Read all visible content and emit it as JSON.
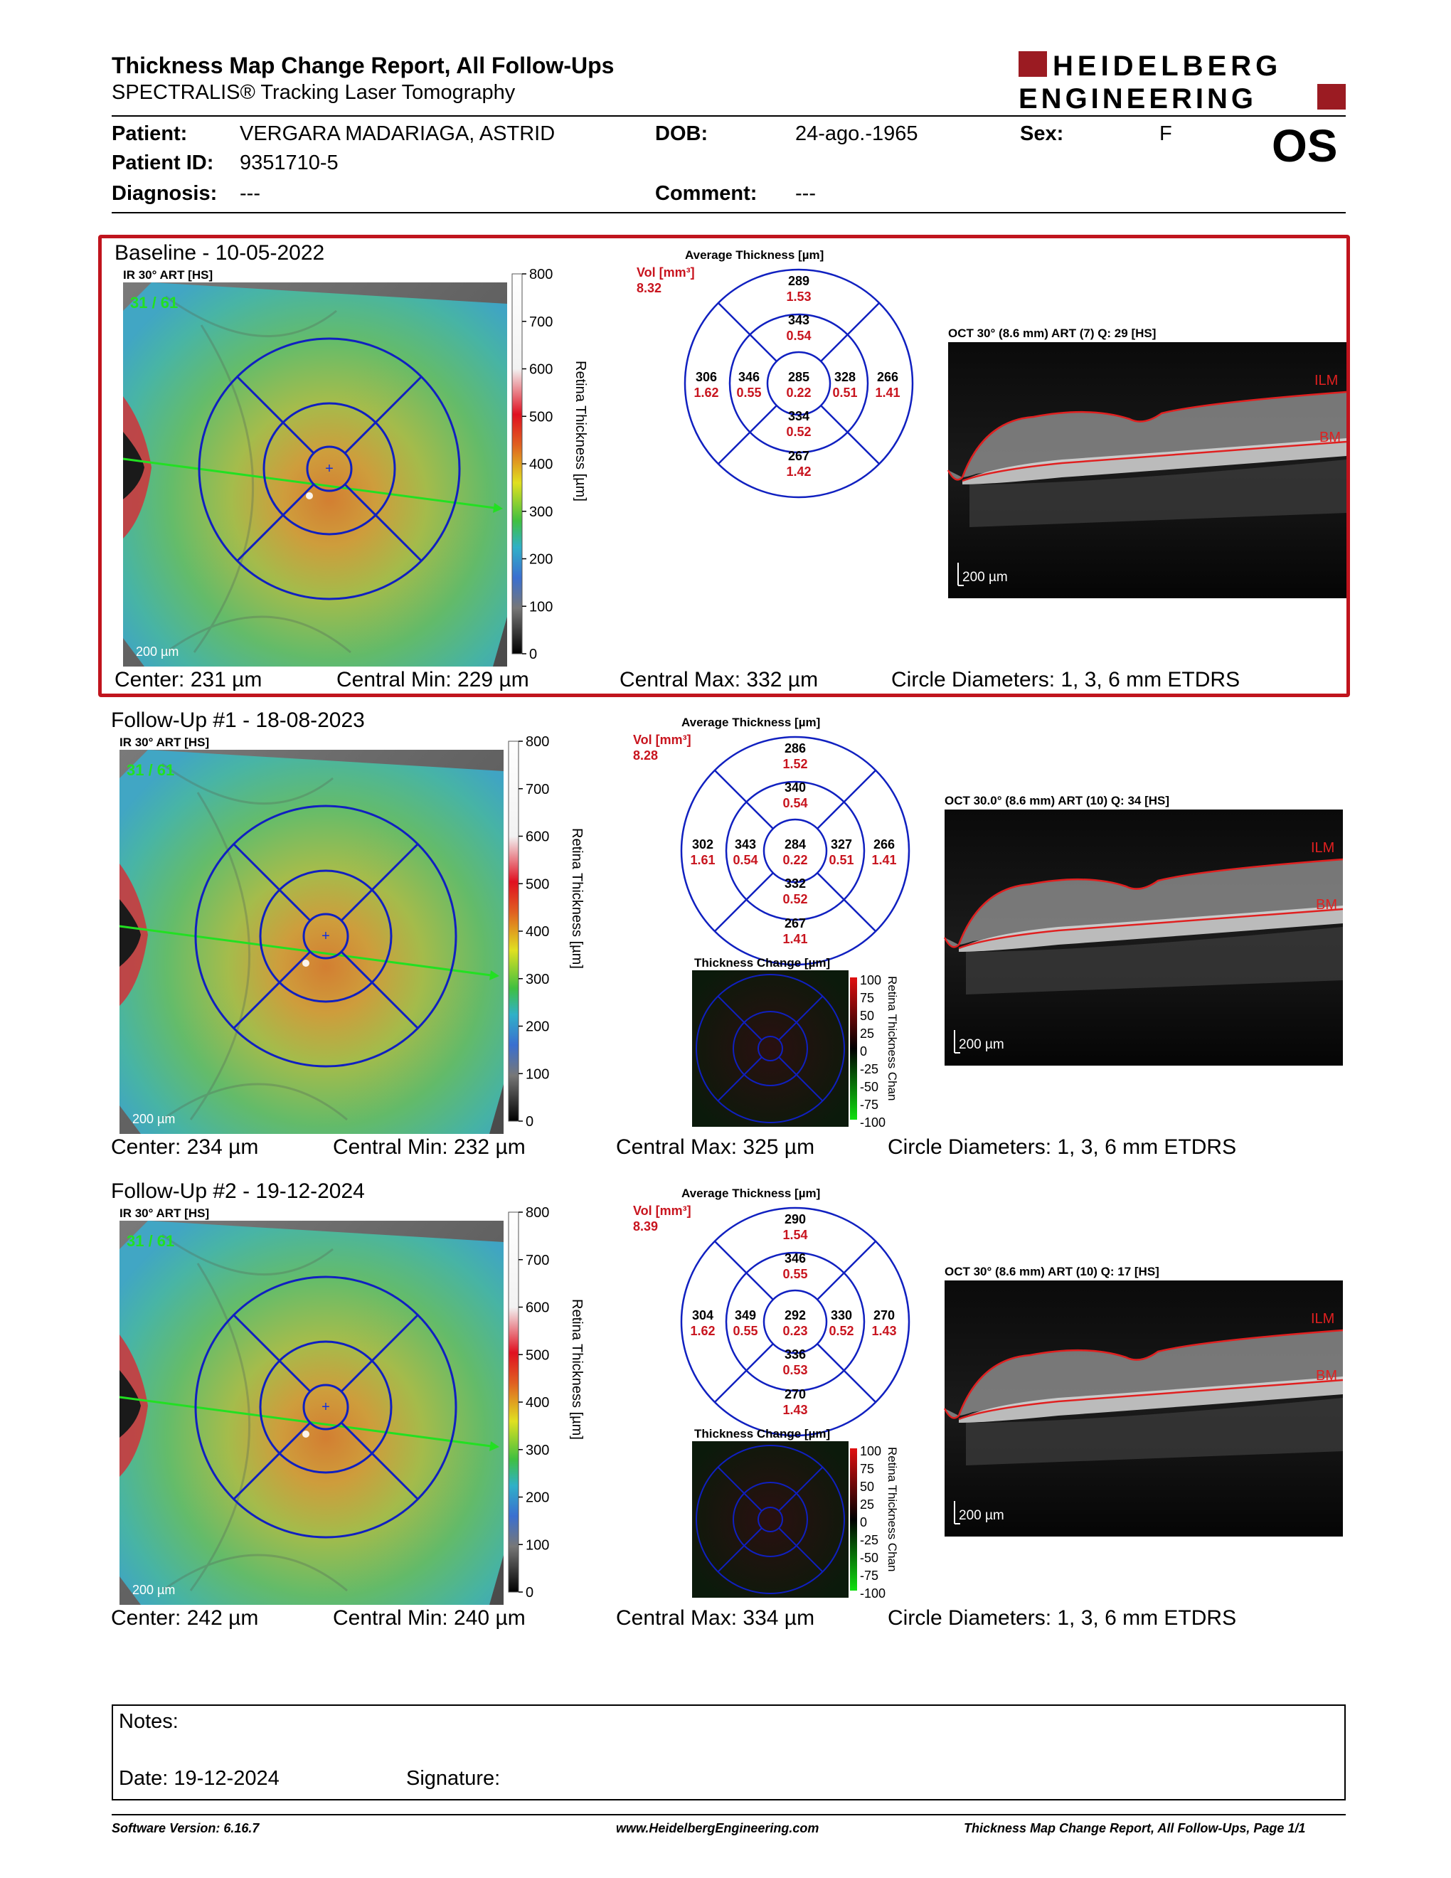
{
  "header": {
    "title": "Thickness Map Change Report, All Follow-Ups",
    "subtitle": "SPECTRALIS® Tracking Laser Tomography",
    "logo_line1": "HEIDELBERG",
    "logo_line2": "ENGINEERING",
    "brand_color": "#9b1b22",
    "eye": "OS"
  },
  "patient": {
    "name_label": "Patient:",
    "name": "VERGARA MADARIAGA, ASTRID",
    "id_label": "Patient ID:",
    "id": "9351710-5",
    "diagnosis_label": "Diagnosis:",
    "diagnosis": "---",
    "dob_label": "DOB:",
    "dob": "24-ago.-1965",
    "comment_label": "Comment:",
    "comment": "---",
    "sex_label": "Sex:",
    "sex": "F"
  },
  "colorbar": {
    "ticks": [
      "800",
      "700",
      "600",
      "500",
      "400",
      "300",
      "200",
      "100",
      "0"
    ],
    "label": "Retina Thickness [µm]"
  },
  "change_colorbar": {
    "ticks": [
      "100",
      "75",
      "50",
      "25",
      "0",
      "-25",
      "-50",
      "-75",
      "-100"
    ],
    "label": "Retina Thickness Chan"
  },
  "sections": [
    {
      "title": "Baseline - 10-05-2022",
      "ir_label": "IR 30° ART [HS]",
      "frames": "31 / 61",
      "scale": "200 µm",
      "avg_title": "Average Thickness [µm]",
      "vol_label": "Vol [mm³]",
      "vol": "8.32",
      "grid": {
        "center": [
          "285",
          "0.22"
        ],
        "inner_sup": [
          "343",
          "0.54"
        ],
        "inner_inf": [
          "334",
          "0.52"
        ],
        "inner_nas": [
          "346",
          "0.55"
        ],
        "inner_temp": [
          "328",
          "0.51"
        ],
        "outer_sup": [
          "289",
          "1.53"
        ],
        "outer_inf": [
          "267",
          "1.42"
        ],
        "outer_nas": [
          "306",
          "1.62"
        ],
        "outer_temp": [
          "266",
          "1.41"
        ]
      },
      "change_title": "",
      "oct_label": "OCT 30° (8.6 mm) ART (7) Q: 29 [HS]",
      "ilm": "ILM",
      "bm": "BM",
      "oct_scale": "200 µm",
      "center": "Center: 231 µm",
      "cmin": "Central Min: 229 µm",
      "cmax": "Central Max: 332 µm",
      "diam": "Circle Diameters:  1, 3, 6 mm ETDRS"
    },
    {
      "title": "Follow-Up #1 - 18-08-2023",
      "ir_label": "IR 30° ART [HS]",
      "frames": "31 / 61",
      "scale": "200 µm",
      "avg_title": "Average Thickness [µm]",
      "vol_label": "Vol [mm³]",
      "vol": "8.28",
      "grid": {
        "center": [
          "284",
          "0.22"
        ],
        "inner_sup": [
          "340",
          "0.54"
        ],
        "inner_inf": [
          "332",
          "0.52"
        ],
        "inner_nas": [
          "343",
          "0.54"
        ],
        "inner_temp": [
          "327",
          "0.51"
        ],
        "outer_sup": [
          "286",
          "1.52"
        ],
        "outer_inf": [
          "267",
          "1.41"
        ],
        "outer_nas": [
          "302",
          "1.61"
        ],
        "outer_temp": [
          "266",
          "1.41"
        ]
      },
      "change_title": "Thickness Change [µm]",
      "oct_label": "OCT 30.0° (8.6 mm) ART (10) Q: 34 [HS]",
      "ilm": "ILM",
      "bm": "BM",
      "oct_scale": "200 µm",
      "center": "Center: 234 µm",
      "cmin": "Central Min: 232 µm",
      "cmax": "Central Max: 325 µm",
      "diam": "Circle Diameters:  1, 3, 6 mm ETDRS"
    },
    {
      "title": "Follow-Up #2 - 19-12-2024",
      "ir_label": "IR 30° ART [HS]",
      "frames": "31 / 61",
      "scale": "200 µm",
      "avg_title": "Average Thickness [µm]",
      "vol_label": "Vol [mm³]",
      "vol": "8.39",
      "grid": {
        "center": [
          "292",
          "0.23"
        ],
        "inner_sup": [
          "346",
          "0.55"
        ],
        "inner_inf": [
          "336",
          "0.53"
        ],
        "inner_nas": [
          "349",
          "0.55"
        ],
        "inner_temp": [
          "330",
          "0.52"
        ],
        "outer_sup": [
          "290",
          "1.54"
        ],
        "outer_inf": [
          "270",
          "1.43"
        ],
        "outer_nas": [
          "304",
          "1.62"
        ],
        "outer_temp": [
          "270",
          "1.43"
        ]
      },
      "change_title": "Thickness Change [µm]",
      "oct_label": "OCT 30° (8.6 mm) ART (10) Q: 17 [HS]",
      "ilm": "ILM",
      "bm": "BM",
      "oct_scale": "200 µm",
      "center": "Center: 242 µm",
      "cmin": "Central Min: 240 µm",
      "cmax": "Central Max: 334 µm",
      "diam": "Circle Diameters:  1, 3, 6 mm ETDRS"
    }
  ],
  "notes": {
    "notes_label": "Notes:",
    "date_label": "Date: 19-12-2024",
    "signature_label": "Signature:"
  },
  "footer": {
    "software": "Software Version: 6.16.7",
    "url": "www.HeidelbergEngineering.com",
    "page": "Thickness Map Change Report, All Follow-Ups, Page 1/1"
  }
}
